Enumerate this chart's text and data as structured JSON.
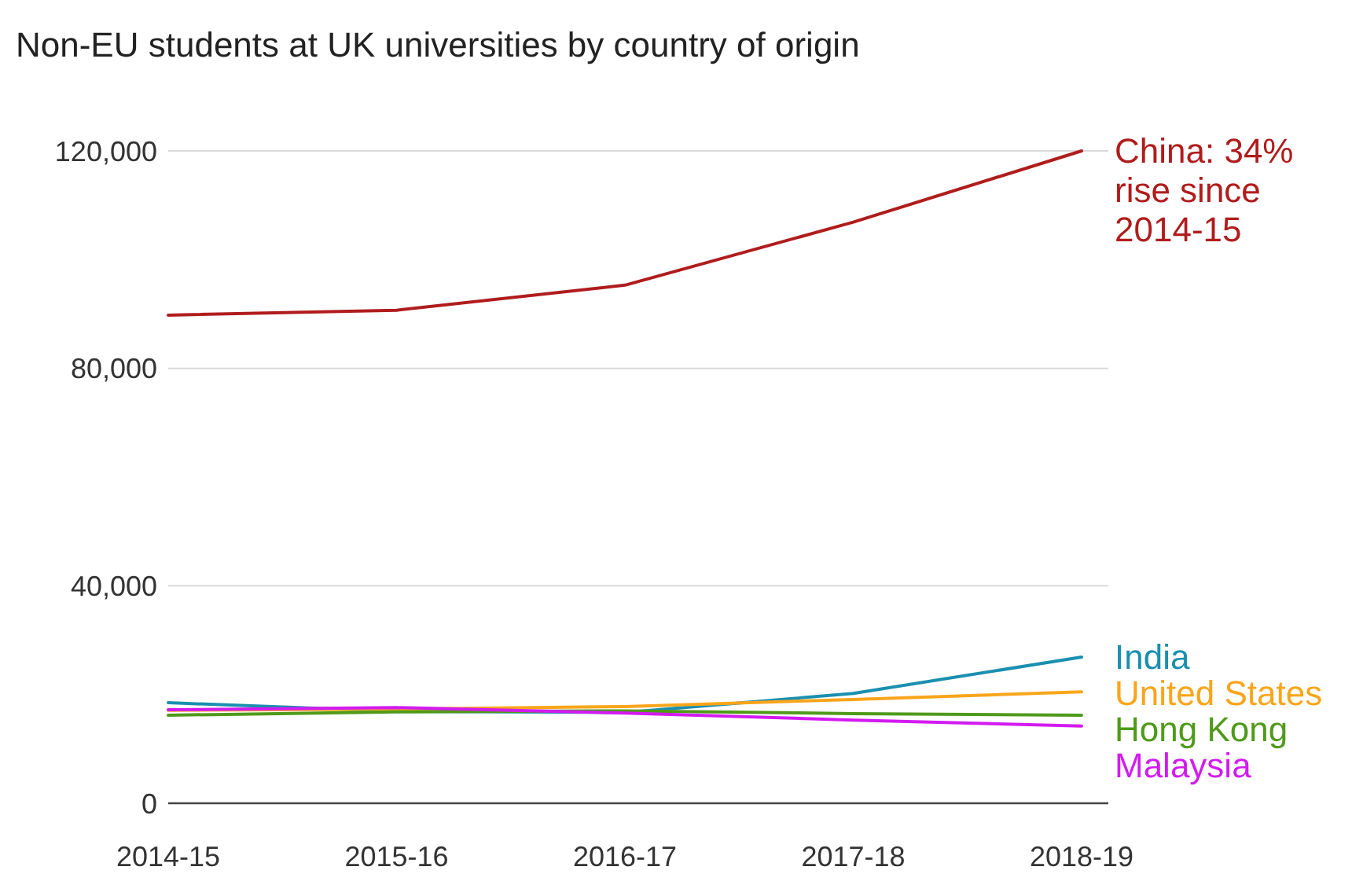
{
  "chart_data": {
    "type": "line",
    "title": "Non-EU students at UK universities by country of origin",
    "categories": [
      "2014-15",
      "2015-16",
      "2016-17",
      "2017-18",
      "2018-19"
    ],
    "series": [
      {
        "name": "China: 34% rise since 2014-15",
        "color": "#b01c1c",
        "values": [
          89800,
          90700,
          95300,
          106900,
          120000
        ]
      },
      {
        "name": "India",
        "color": "#1a8fb0",
        "values": [
          18500,
          16900,
          16700,
          20200,
          26900
        ]
      },
      {
        "name": "United States",
        "color": "#f9a51b",
        "values": [
          17100,
          17300,
          17800,
          19100,
          20500
        ]
      },
      {
        "name": "Hong Kong",
        "color": "#4f9a1a",
        "values": [
          16200,
          16800,
          17000,
          16500,
          16200
        ]
      },
      {
        "name": "Malaysia",
        "color": "#d21bf0",
        "values": [
          17200,
          17600,
          16600,
          15300,
          14200
        ]
      }
    ],
    "ylim": [
      0,
      120000
    ],
    "yticks": [
      {
        "value": 0,
        "label": "0"
      },
      {
        "value": 40000,
        "label": "40,000"
      },
      {
        "value": 80000,
        "label": "80,000"
      },
      {
        "value": 120000,
        "label": "120,000"
      }
    ],
    "grid": "y"
  }
}
